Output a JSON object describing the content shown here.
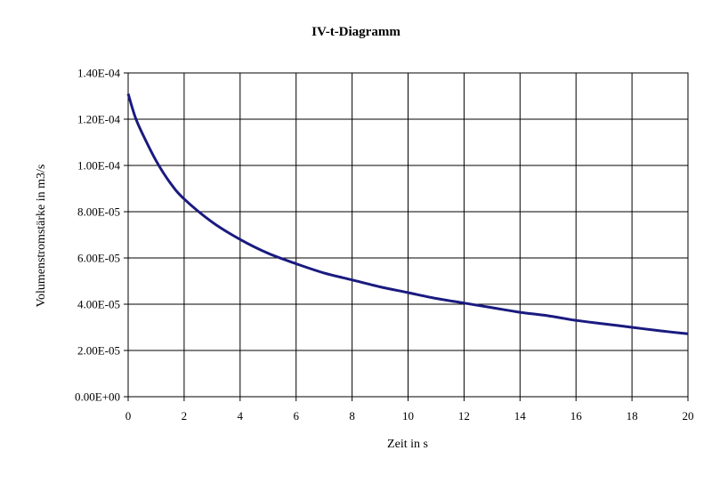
{
  "chart_data": {
    "type": "line",
    "title": "IV-t-Diagramm",
    "xlabel": "Zeit in s",
    "ylabel": "Volumenstromstärke in m3/s",
    "xlim": [
      0,
      20
    ],
    "ylim": [
      0,
      0.00014
    ],
    "x_ticks": [
      "0",
      "2",
      "4",
      "6",
      "8",
      "10",
      "12",
      "14",
      "16",
      "18",
      "20"
    ],
    "y_ticks": [
      "0.00E+00",
      "2.00E-05",
      "4.00E-05",
      "6.00E-05",
      "8.00E-05",
      "1.00E-04",
      "1.20E-04",
      "1.40E-04"
    ],
    "grid": true,
    "legend": "none",
    "series": [
      {
        "color": "#1a1a80",
        "x": [
          0,
          0.25,
          0.5,
          1,
          1.5,
          2,
          3,
          4,
          5,
          6,
          7,
          8,
          9,
          10,
          11,
          12,
          13,
          14,
          15,
          16,
          17,
          18,
          19,
          20
        ],
        "y": [
          0.000131,
          0.000121,
          0.000114,
          0.000102,
          9.25e-05,
          8.55e-05,
          7.55e-05,
          6.8e-05,
          6.2e-05,
          5.75e-05,
          5.35e-05,
          5.05e-05,
          4.75e-05,
          4.5e-05,
          4.25e-05,
          4.05e-05,
          3.85e-05,
          3.65e-05,
          3.5e-05,
          3.3e-05,
          3.15e-05,
          3e-05,
          2.85e-05,
          2.72e-05
        ]
      }
    ]
  }
}
